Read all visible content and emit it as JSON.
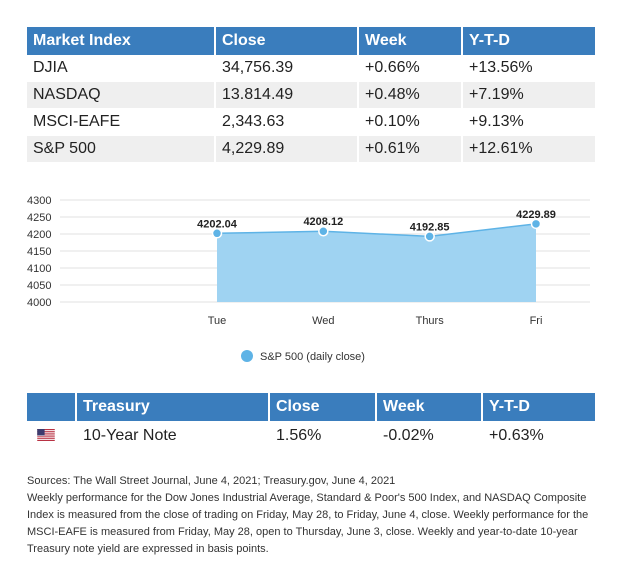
{
  "market_table": {
    "headers": [
      "Market Index",
      "Close",
      "Week",
      "Y-T-D"
    ],
    "rows": [
      [
        "DJIA",
        "34,756.39",
        "+0.66%",
        "+13.56%"
      ],
      [
        "NASDAQ",
        "13.814.49",
        "+0.48%",
        "+7.19%"
      ],
      [
        "MSCI-EAFE",
        "2,343.63",
        "+0.10%",
        "+9.13%"
      ],
      [
        "S&P 500",
        "4,229.89",
        "+0.61%",
        "+12.61%"
      ]
    ]
  },
  "chart_data": {
    "type": "area",
    "categories": [
      "Tue",
      "Wed",
      "Thurs",
      "Fri"
    ],
    "series": [
      {
        "name": "S&P 500 (daily close)",
        "values": [
          4202.04,
          4208.12,
          4192.85,
          4229.89
        ]
      }
    ],
    "data_labels": [
      "4202.04",
      "4208.12",
      "4192.85",
      "4229.89"
    ],
    "y_ticks": [
      "4300",
      "4250",
      "4200",
      "4150",
      "4100",
      "4050",
      "4000"
    ],
    "ylim": [
      4000,
      4300
    ],
    "grid": true,
    "legend_position": "bottom",
    "colors": {
      "fill": "#9fd3f2",
      "line": "#5eb3e6",
      "marker": "#5eb3e6",
      "grid": "#e2e2e2",
      "header": "#3a7dbd"
    }
  },
  "treasury_table": {
    "headers": [
      "",
      "Treasury",
      "Close",
      "Week",
      "Y-T-D"
    ],
    "rows": [
      {
        "icon": "us-flag-icon",
        "name": "10-Year Note",
        "close": "1.56%",
        "week": "-0.02%",
        "ytd": "+0.63%"
      }
    ]
  },
  "sources": {
    "line1": "Sources: The Wall Street Journal, June 4, 2021; Treasury.gov, June 4, 2021",
    "body": "Weekly performance for the Dow Jones Industrial Average, Standard & Poor's 500 Index, and NASDAQ Composite Index is measured from the close of trading on Friday, May 28, to Friday, June 4, close. Weekly performance for the MSCI-EAFE is measured from Friday, May 28, open to Thursday, June 3, close. Weekly and year-to-date 10-year Treasury note yield are expressed in basis points."
  }
}
